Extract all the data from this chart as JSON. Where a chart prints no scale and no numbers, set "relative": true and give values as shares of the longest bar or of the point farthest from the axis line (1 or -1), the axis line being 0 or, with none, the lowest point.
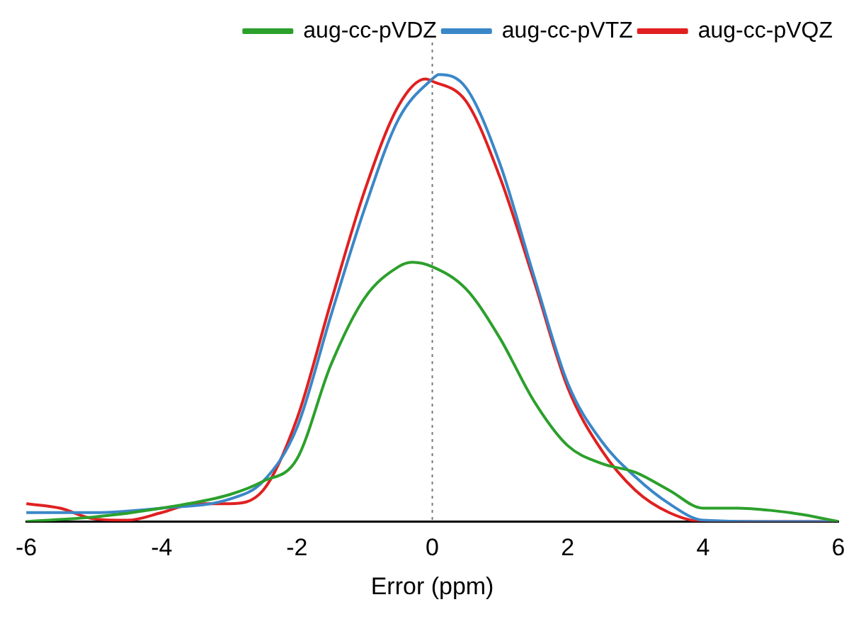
{
  "chart_data": {
    "type": "line",
    "relative": true,
    "xlabel": "Error (ppm)",
    "xlim": [
      -6,
      6
    ],
    "xticks": [
      -6,
      -4,
      -2,
      0,
      2,
      4,
      6
    ],
    "legend": "top right",
    "grid": false,
    "marker": "none",
    "line_style": "solid",
    "ref_lines": [
      {
        "axis": "x",
        "value": 0,
        "color": "#777777",
        "line_style": "dotted"
      }
    ],
    "series": [
      {
        "name": "aug-cc-pVDZ",
        "color": "#2ca02c",
        "x": [
          -6,
          -5,
          -4,
          -3,
          -2.5,
          -2,
          -1.5,
          -1,
          -0.5,
          -0.3,
          0,
          0.5,
          1,
          1.5,
          2,
          2.5,
          3,
          3.5,
          4,
          4.5,
          5,
          5.5,
          6
        ],
        "values": [
          0,
          0.01,
          0.03,
          0.06,
          0.09,
          0.14,
          0.35,
          0.5,
          0.57,
          0.58,
          0.57,
          0.52,
          0.41,
          0.27,
          0.17,
          0.13,
          0.11,
          0.07,
          0.03,
          0.03,
          0.025,
          0.015,
          0
        ]
      },
      {
        "name": "aug-cc-pVTZ",
        "color": "#3a87c8",
        "x": [
          -6,
          -5,
          -4,
          -3,
          -2.5,
          -2,
          -1.5,
          -1,
          -0.5,
          0,
          0.1,
          0.5,
          1,
          1.5,
          2,
          2.5,
          3,
          3.5,
          4,
          5,
          6
        ],
        "values": [
          0.02,
          0.02,
          0.03,
          0.05,
          0.09,
          0.21,
          0.46,
          0.7,
          0.9,
          0.99,
          1,
          0.97,
          0.8,
          0.55,
          0.31,
          0.18,
          0.1,
          0.04,
          0.003,
          0,
          0
        ]
      },
      {
        "name": "aug-cc-pVQZ",
        "color": "#e02020",
        "x": [
          -6,
          -5.5,
          -5,
          -4.5,
          -4,
          -3.5,
          -3,
          -2.5,
          -2,
          -1.5,
          -1,
          -0.5,
          -0.1,
          0,
          0.5,
          1,
          1.5,
          2,
          2.5,
          3,
          3.5,
          4,
          6
        ],
        "values": [
          0.04,
          0.03,
          0.006,
          0.003,
          0.02,
          0.04,
          0.04,
          0.07,
          0.23,
          0.49,
          0.74,
          0.93,
          0.99,
          0.985,
          0.94,
          0.77,
          0.54,
          0.3,
          0.16,
          0.07,
          0.02,
          0,
          0
        ]
      }
    ]
  }
}
